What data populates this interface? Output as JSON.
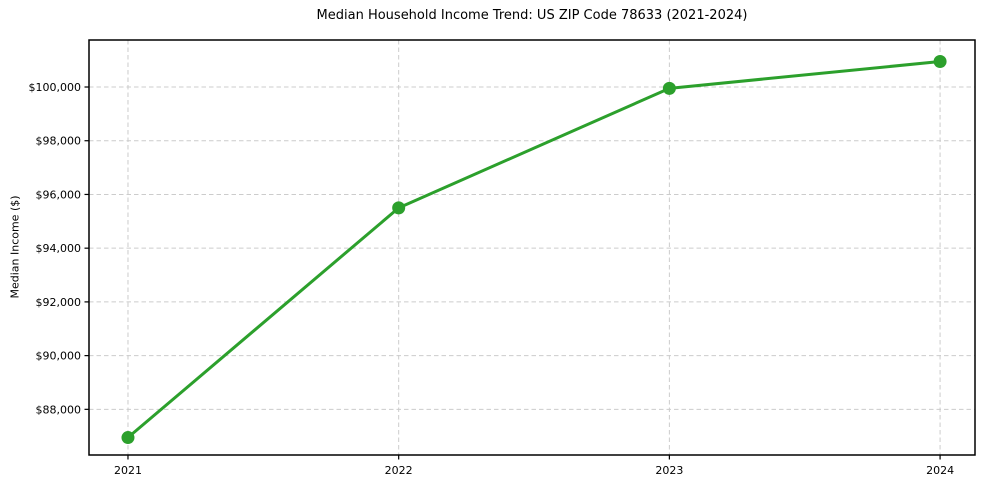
{
  "chart_data": {
    "type": "line",
    "title": "Median Household Income Trend: US ZIP Code 78633 (2021-2024)",
    "ylabel": "Median Income ($)",
    "xlabel": "",
    "x": [
      2021,
      2022,
      2023,
      2024
    ],
    "series": [
      {
        "name": "Median Household Income",
        "values": [
          86950,
          95500,
          99950,
          100950
        ]
      }
    ],
    "x_tick_labels": [
      "2021",
      "2022",
      "2023",
      "2024"
    ],
    "y_ticks": [
      88000,
      90000,
      92000,
      94000,
      96000,
      98000,
      100000
    ],
    "y_tick_labels": [
      "$88,000",
      "$90,000",
      "$92,000",
      "$94,000",
      "$96,000",
      "$98,000",
      "$100,000"
    ],
    "xlim": [
      2020.856,
      2024.129
    ],
    "ylim": [
      86300,
      101750
    ],
    "grid": true,
    "legend_position": "none",
    "colors": {
      "line": "#2ca02c",
      "marker": "#2ca02c",
      "grid": "#cccccc",
      "spine": "#000000",
      "tick": "#000000",
      "background": "#ffffff"
    }
  }
}
